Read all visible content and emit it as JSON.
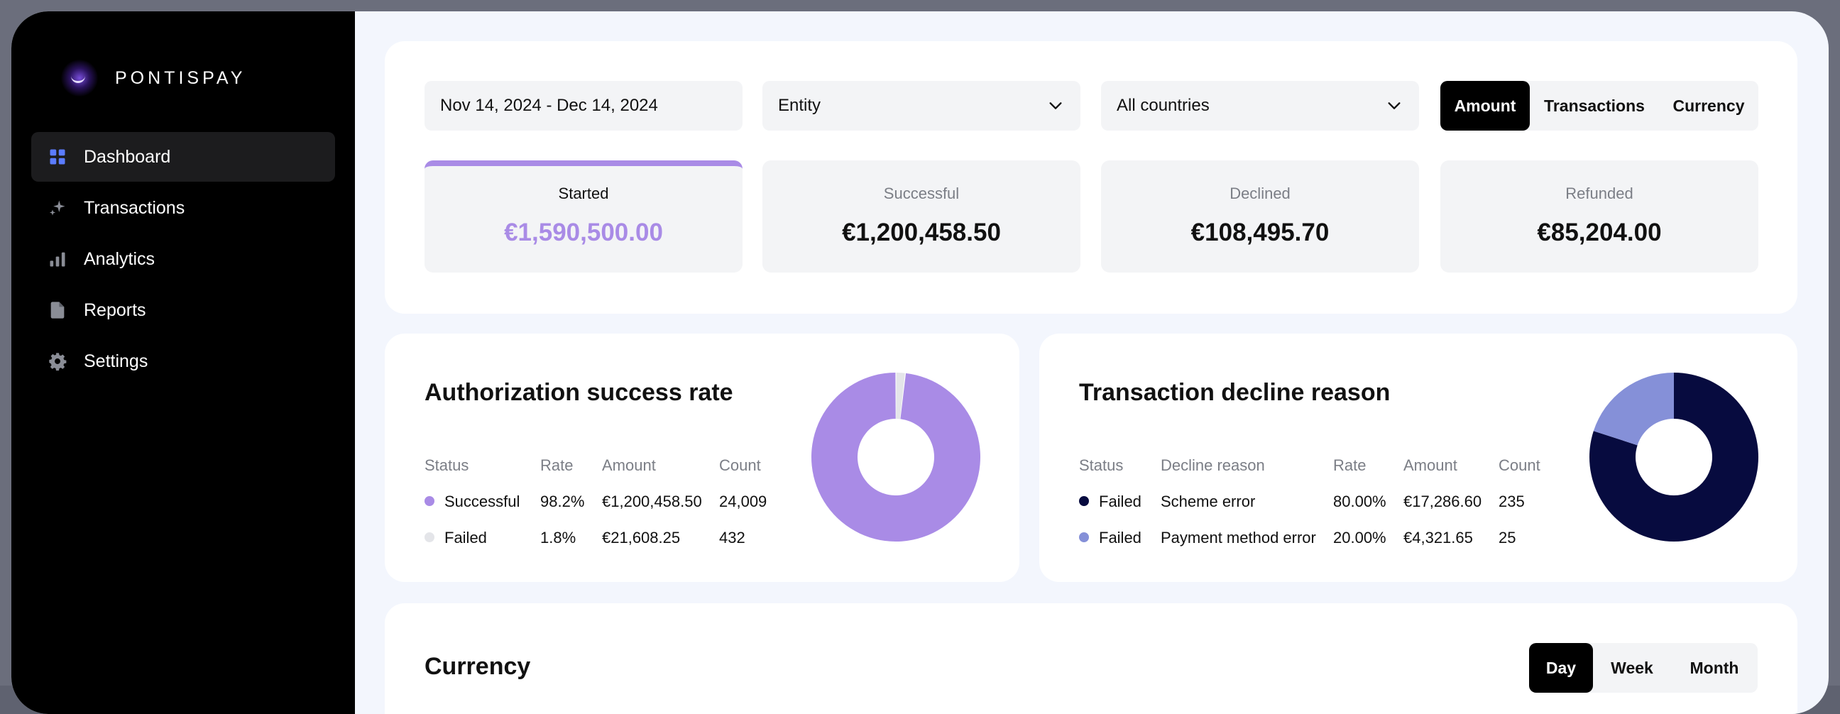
{
  "brand": {
    "name": "PONTISPAY"
  },
  "sidebar": {
    "items": [
      {
        "label": "Dashboard",
        "icon": "dashboard-grid-icon",
        "active": true
      },
      {
        "label": "Transactions",
        "icon": "sparkle-icon",
        "active": false
      },
      {
        "label": "Analytics",
        "icon": "bar-chart-icon",
        "active": false
      },
      {
        "label": "Reports",
        "icon": "document-icon",
        "active": false
      },
      {
        "label": "Settings",
        "icon": "gear-icon",
        "active": false
      }
    ]
  },
  "filters": {
    "date_range": "Nov 14, 2024 - Dec 14, 2024",
    "entity": "Entity",
    "countries": "All countries",
    "view_toggle": {
      "options": [
        "Amount",
        "Transactions",
        "Currency"
      ],
      "selected": "Amount"
    }
  },
  "stats": [
    {
      "label": "Started",
      "value": "€1,590,500.00",
      "selected": true
    },
    {
      "label": "Successful",
      "value": "€1,200,458.50",
      "selected": false
    },
    {
      "label": "Declined",
      "value": "€108,495.70",
      "selected": false
    },
    {
      "label": "Refunded",
      "value": "€85,204.00",
      "selected": false
    }
  ],
  "authorization": {
    "title": "Authorization success rate",
    "columns": [
      "Status",
      "Rate",
      "Amount",
      "Count"
    ],
    "rows": [
      {
        "status": "Successful",
        "rate": "98.2%",
        "amount": "€1,200,458.50",
        "count": "24,009",
        "color": "#a98be6"
      },
      {
        "status": "Failed",
        "rate": "1.8%",
        "amount": "€21,608.25",
        "count": "432",
        "color": "#e4e5e9"
      }
    ]
  },
  "decline": {
    "title": "Transaction decline reason",
    "columns": [
      "Status",
      "Decline reason",
      "Rate",
      "Amount",
      "Count"
    ],
    "rows": [
      {
        "status": "Failed",
        "reason": "Scheme error",
        "rate": "80.00%",
        "amount": "€17,286.60",
        "count": "235",
        "color": "#070b3f"
      },
      {
        "status": "Failed",
        "reason": "Payment method error",
        "rate": "20.00%",
        "amount": "€4,321.65",
        "count": "25",
        "color": "#8590d8"
      }
    ]
  },
  "currency": {
    "title": "Currency",
    "period_toggle": {
      "options": [
        "Day",
        "Week",
        "Month"
      ],
      "selected": "Day"
    }
  },
  "chart_data": [
    {
      "type": "pie",
      "categories": [
        "Successful",
        "Failed"
      ],
      "values": [
        98.2,
        1.8
      ],
      "colors": [
        "#a98be6",
        "#e4e5e9"
      ]
    },
    {
      "type": "pie",
      "categories": [
        "Scheme error",
        "Payment method error"
      ],
      "values": [
        80,
        20
      ],
      "colors": [
        "#070b3f",
        "#8590d8"
      ]
    }
  ]
}
